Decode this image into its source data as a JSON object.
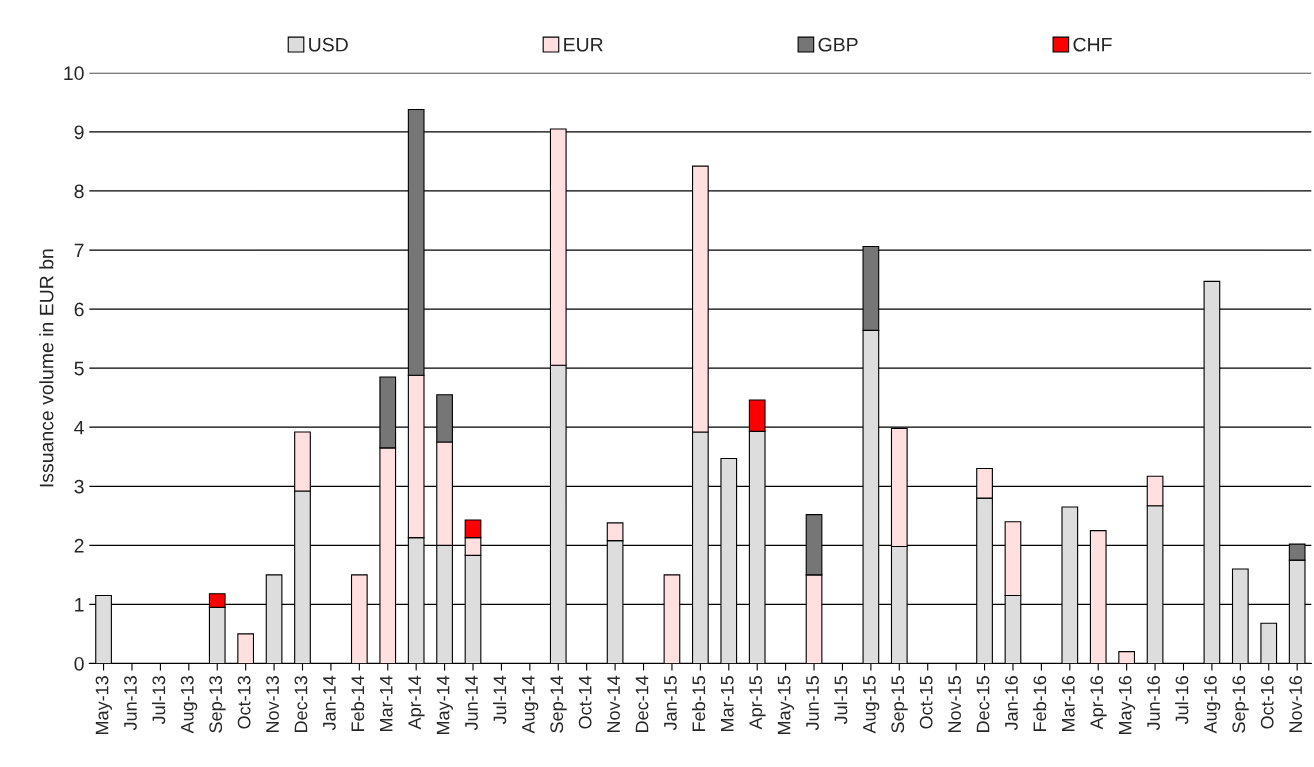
{
  "chart_data": {
    "type": "bar",
    "stacked": true,
    "ylabel": "Issuance volume in EUR bn",
    "categories": [
      "May-13",
      "Jun-13",
      "Jul-13",
      "Aug-13",
      "Sep-13",
      "Oct-13",
      "Nov-13",
      "Dec-13",
      "Jan-14",
      "Feb-14",
      "Mar-14",
      "Apr-14",
      "May-14",
      "Jun-14",
      "Jul-14",
      "Aug-14",
      "Sep-14",
      "Oct-14",
      "Nov-14",
      "Dec-14",
      "Jan-15",
      "Feb-15",
      "Mar-15",
      "Apr-15",
      "May-15",
      "Jun-15",
      "Jul-15",
      "Aug-15",
      "Sep-15",
      "Oct-15",
      "Nov-15",
      "Dec-15",
      "Jan-16",
      "Feb-16",
      "Mar-16",
      "Apr-16",
      "May-16",
      "Jun-16",
      "Jul-16",
      "Aug-16",
      "Sep-16",
      "Oct-16",
      "Nov-16"
    ],
    "series": [
      {
        "name": "USD",
        "color": "#dddddd",
        "values": [
          1.15,
          null,
          null,
          null,
          0.95,
          null,
          1.5,
          2.92,
          null,
          null,
          null,
          2.13,
          2.0,
          1.83,
          null,
          null,
          5.05,
          null,
          2.08,
          null,
          null,
          3.92,
          3.47,
          3.93,
          null,
          null,
          null,
          5.64,
          1.98,
          null,
          null,
          2.8,
          1.15,
          null,
          2.65,
          null,
          null,
          2.67,
          null,
          6.47,
          1.6,
          0.68,
          1.75
        ]
      },
      {
        "name": "EUR",
        "color": "#ffdfe0",
        "values": [
          null,
          null,
          null,
          null,
          null,
          0.5,
          null,
          1.0,
          null,
          1.5,
          3.65,
          2.75,
          1.75,
          0.3,
          null,
          null,
          4.0,
          null,
          0.3,
          null,
          1.5,
          4.5,
          null,
          null,
          null,
          1.5,
          null,
          null,
          2.0,
          null,
          null,
          0.5,
          1.25,
          null,
          null,
          2.25,
          0.2,
          0.5,
          null,
          null,
          null,
          null,
          null
        ]
      },
      {
        "name": "GBP",
        "color": "#767676",
        "values": [
          null,
          null,
          null,
          null,
          null,
          null,
          null,
          null,
          null,
          null,
          1.2,
          4.5,
          0.8,
          null,
          null,
          null,
          null,
          null,
          null,
          null,
          null,
          null,
          null,
          null,
          null,
          1.02,
          null,
          1.42,
          null,
          null,
          null,
          null,
          null,
          null,
          null,
          null,
          null,
          null,
          null,
          null,
          null,
          null,
          0.27
        ]
      },
      {
        "name": "CHF",
        "color": "#ff0000",
        "values": [
          null,
          null,
          null,
          null,
          0.23,
          null,
          null,
          null,
          null,
          null,
          null,
          null,
          null,
          0.3,
          null,
          null,
          null,
          null,
          null,
          null,
          null,
          null,
          null,
          0.53,
          null,
          null,
          null,
          null,
          null,
          null,
          null,
          null,
          null,
          null,
          null,
          null,
          null,
          null,
          null,
          null,
          null,
          null,
          null
        ]
      }
    ],
    "ylim": [
      0,
      10
    ],
    "yticks": [
      0,
      1,
      2,
      3,
      4,
      5,
      6,
      7,
      8,
      9,
      10
    ],
    "grid": "y",
    "legend": "top"
  }
}
